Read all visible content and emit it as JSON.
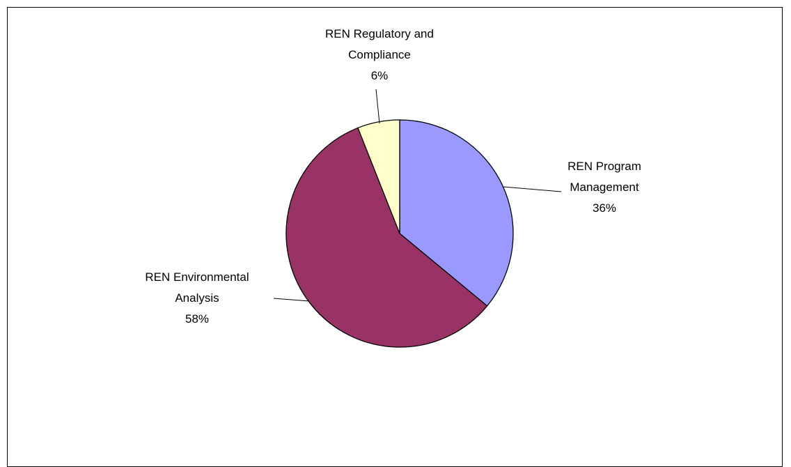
{
  "chart_data": {
    "type": "pie",
    "start_angle_deg": 0,
    "direction": "clockwise",
    "slices": [
      {
        "category_lines": [
          "REN Program",
          "Management"
        ],
        "value": 36,
        "value_label": "36%",
        "color": "#9999FF"
      },
      {
        "category_lines": [
          "REN Environmental",
          "Analysis"
        ],
        "value": 58,
        "value_label": "58%",
        "color": "#993366"
      },
      {
        "category_lines": [
          "REN Regulatory and",
          "Compliance"
        ],
        "value": 6,
        "value_label": "6%",
        "color": "#FFFFCC"
      }
    ],
    "legend": "none",
    "slice_outline_color": "#000000"
  }
}
